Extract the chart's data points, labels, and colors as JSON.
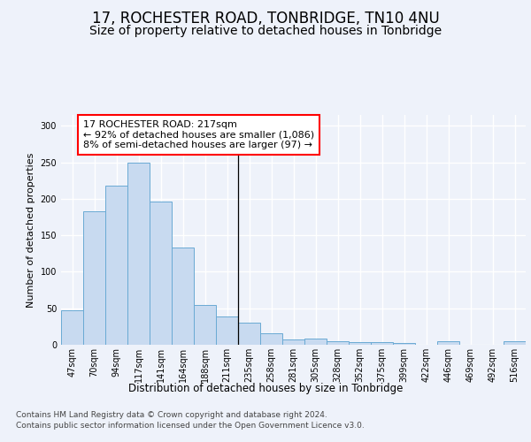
{
  "title": "17, ROCHESTER ROAD, TONBRIDGE, TN10 4NU",
  "subtitle": "Size of property relative to detached houses in Tonbridge",
  "xlabel": "Distribution of detached houses by size in Tonbridge",
  "ylabel": "Number of detached properties",
  "categories": [
    "47sqm",
    "70sqm",
    "94sqm",
    "117sqm",
    "141sqm",
    "164sqm",
    "188sqm",
    "211sqm",
    "235sqm",
    "258sqm",
    "281sqm",
    "305sqm",
    "328sqm",
    "352sqm",
    "375sqm",
    "399sqm",
    "422sqm",
    "446sqm",
    "469sqm",
    "492sqm",
    "516sqm"
  ],
  "values": [
    47,
    183,
    218,
    250,
    196,
    133,
    55,
    39,
    30,
    16,
    7,
    9,
    5,
    4,
    4,
    2,
    0,
    5,
    0,
    0,
    5
  ],
  "bar_color": "#c8daf0",
  "bar_edge_color": "#6aaad4",
  "annotation_text": "17 ROCHESTER ROAD: 217sqm\n← 92% of detached houses are smaller (1,086)\n8% of semi-detached houses are larger (97) →",
  "vline_x": 7.5,
  "ylim": [
    0,
    315
  ],
  "yticks": [
    0,
    50,
    100,
    150,
    200,
    250,
    300
  ],
  "footer_line1": "Contains HM Land Registry data © Crown copyright and database right 2024.",
  "footer_line2": "Contains public sector information licensed under the Open Government Licence v3.0.",
  "background_color": "#eef2fa",
  "plot_background": "#eef2fa",
  "grid_color": "#ffffff",
  "title_fontsize": 12,
  "subtitle_fontsize": 10,
  "annotation_fontsize": 8,
  "xlabel_fontsize": 8.5,
  "ylabel_fontsize": 8,
  "tick_fontsize": 7,
  "footer_fontsize": 6.5
}
